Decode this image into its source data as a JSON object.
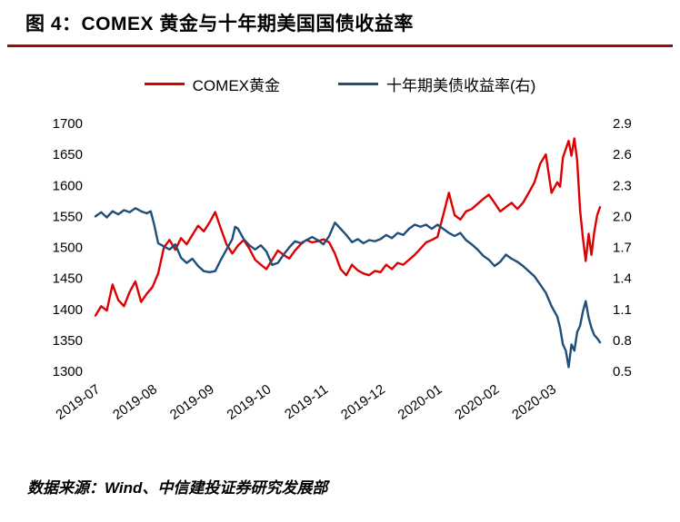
{
  "header": {
    "title": "图 4：COMEX 黄金与十年期美国国债收益率"
  },
  "footer": {
    "source": "数据来源：Wind、中信建投证券研究发展部"
  },
  "colors": {
    "accent_rule": "#9a0d0d",
    "gold_line": "#dd0000",
    "yield_line": "#1f4e79",
    "text": "#000000",
    "background": "#ffffff"
  },
  "chart_data": {
    "type": "line",
    "title": "图 4：COMEX 黄金与十年期美国国债收益率",
    "legend_position": "top",
    "grid": false,
    "x_axis": {
      "t_max": 8.85,
      "ticks": [
        {
          "t": 0,
          "label": "2019-07"
        },
        {
          "t": 1,
          "label": "2019-08"
        },
        {
          "t": 2,
          "label": "2019-09"
        },
        {
          "t": 3,
          "label": "2019-10"
        },
        {
          "t": 4,
          "label": "2019-11"
        },
        {
          "t": 5,
          "label": "2019-12"
        },
        {
          "t": 6,
          "label": "2020-01"
        },
        {
          "t": 7,
          "label": "2020-02"
        },
        {
          "t": 8,
          "label": "2020-03"
        }
      ]
    },
    "left_axis": {
      "min": 1300,
      "max": 1700,
      "ticks": [
        1700,
        1650,
        1600,
        1550,
        1500,
        1450,
        1400,
        1350,
        1300
      ]
    },
    "right_axis": {
      "min": 0.5,
      "max": 2.9,
      "ticks": [
        2.9,
        2.6,
        2.3,
        2.0,
        1.7,
        1.4,
        1.1,
        0.8,
        0.5
      ]
    },
    "series": [
      {
        "name": "COMEX黄金",
        "data_name": "comex-gold-line",
        "axis": "left",
        "color": "#dd0000",
        "points": [
          [
            0,
            1390
          ],
          [
            0.1,
            1405
          ],
          [
            0.2,
            1398
          ],
          [
            0.3,
            1440
          ],
          [
            0.4,
            1415
          ],
          [
            0.5,
            1405
          ],
          [
            0.6,
            1428
          ],
          [
            0.7,
            1445
          ],
          [
            0.8,
            1412
          ],
          [
            0.9,
            1425
          ],
          [
            1,
            1436
          ],
          [
            1.1,
            1458
          ],
          [
            1.2,
            1500
          ],
          [
            1.3,
            1512
          ],
          [
            1.4,
            1496
          ],
          [
            1.5,
            1515
          ],
          [
            1.6,
            1505
          ],
          [
            1.7,
            1520
          ],
          [
            1.8,
            1535
          ],
          [
            1.9,
            1526
          ],
          [
            2,
            1540
          ],
          [
            2.1,
            1557
          ],
          [
            2.2,
            1530
          ],
          [
            2.3,
            1505
          ],
          [
            2.4,
            1490
          ],
          [
            2.5,
            1503
          ],
          [
            2.6,
            1512
          ],
          [
            2.7,
            1498
          ],
          [
            2.8,
            1480
          ],
          [
            2.9,
            1472
          ],
          [
            3,
            1465
          ],
          [
            3.1,
            1480
          ],
          [
            3.2,
            1495
          ],
          [
            3.3,
            1488
          ],
          [
            3.4,
            1482
          ],
          [
            3.5,
            1495
          ],
          [
            3.6,
            1505
          ],
          [
            3.7,
            1512
          ],
          [
            3.8,
            1508
          ],
          [
            3.9,
            1510
          ],
          [
            4,
            1513
          ],
          [
            4.1,
            1508
          ],
          [
            4.2,
            1490
          ],
          [
            4.3,
            1465
          ],
          [
            4.4,
            1455
          ],
          [
            4.5,
            1472
          ],
          [
            4.6,
            1463
          ],
          [
            4.7,
            1458
          ],
          [
            4.8,
            1455
          ],
          [
            4.9,
            1462
          ],
          [
            5,
            1460
          ],
          [
            5.1,
            1472
          ],
          [
            5.2,
            1465
          ],
          [
            5.3,
            1475
          ],
          [
            5.4,
            1472
          ],
          [
            5.5,
            1480
          ],
          [
            5.6,
            1488
          ],
          [
            5.7,
            1498
          ],
          [
            5.8,
            1508
          ],
          [
            5.9,
            1512
          ],
          [
            6,
            1517
          ],
          [
            6.1,
            1552
          ],
          [
            6.2,
            1588
          ],
          [
            6.3,
            1552
          ],
          [
            6.4,
            1545
          ],
          [
            6.5,
            1558
          ],
          [
            6.6,
            1562
          ],
          [
            6.7,
            1570
          ],
          [
            6.8,
            1578
          ],
          [
            6.9,
            1585
          ],
          [
            7,
            1572
          ],
          [
            7.1,
            1558
          ],
          [
            7.2,
            1565
          ],
          [
            7.3,
            1572
          ],
          [
            7.4,
            1562
          ],
          [
            7.5,
            1572
          ],
          [
            7.6,
            1588
          ],
          [
            7.7,
            1605
          ],
          [
            7.8,
            1635
          ],
          [
            7.9,
            1650
          ],
          [
            8,
            1588
          ],
          [
            8.1,
            1605
          ],
          [
            8.15,
            1598
          ],
          [
            8.2,
            1645
          ],
          [
            8.3,
            1672
          ],
          [
            8.35,
            1648
          ],
          [
            8.4,
            1676
          ],
          [
            8.45,
            1640
          ],
          [
            8.5,
            1560
          ],
          [
            8.55,
            1515
          ],
          [
            8.6,
            1478
          ],
          [
            8.65,
            1522
          ],
          [
            8.7,
            1488
          ],
          [
            8.75,
            1525
          ],
          [
            8.8,
            1552
          ],
          [
            8.85,
            1565
          ]
        ]
      },
      {
        "name": "十年期美债收益率(右)",
        "data_name": "treasury-yield-line",
        "axis": "right",
        "color": "#1f4e79",
        "points": [
          [
            0,
            2.0
          ],
          [
            0.1,
            2.04
          ],
          [
            0.2,
            1.99
          ],
          [
            0.3,
            2.05
          ],
          [
            0.4,
            2.02
          ],
          [
            0.5,
            2.06
          ],
          [
            0.6,
            2.04
          ],
          [
            0.7,
            2.08
          ],
          [
            0.8,
            2.05
          ],
          [
            0.9,
            2.03
          ],
          [
            0.97,
            2.05
          ],
          [
            1.03,
            1.92
          ],
          [
            1.1,
            1.74
          ],
          [
            1.2,
            1.71
          ],
          [
            1.3,
            1.68
          ],
          [
            1.4,
            1.73
          ],
          [
            1.5,
            1.6
          ],
          [
            1.6,
            1.55
          ],
          [
            1.7,
            1.59
          ],
          [
            1.8,
            1.52
          ],
          [
            1.9,
            1.47
          ],
          [
            2,
            1.46
          ],
          [
            2.1,
            1.47
          ],
          [
            2.2,
            1.58
          ],
          [
            2.3,
            1.68
          ],
          [
            2.4,
            1.78
          ],
          [
            2.45,
            1.9
          ],
          [
            2.5,
            1.88
          ],
          [
            2.6,
            1.78
          ],
          [
            2.7,
            1.72
          ],
          [
            2.8,
            1.68
          ],
          [
            2.9,
            1.72
          ],
          [
            3,
            1.66
          ],
          [
            3.1,
            1.53
          ],
          [
            3.2,
            1.55
          ],
          [
            3.3,
            1.63
          ],
          [
            3.4,
            1.7
          ],
          [
            3.5,
            1.76
          ],
          [
            3.6,
            1.74
          ],
          [
            3.7,
            1.77
          ],
          [
            3.8,
            1.8
          ],
          [
            3.9,
            1.77
          ],
          [
            4,
            1.73
          ],
          [
            4.1,
            1.81
          ],
          [
            4.2,
            1.94
          ],
          [
            4.3,
            1.88
          ],
          [
            4.4,
            1.82
          ],
          [
            4.5,
            1.75
          ],
          [
            4.6,
            1.78
          ],
          [
            4.7,
            1.74
          ],
          [
            4.8,
            1.77
          ],
          [
            4.9,
            1.76
          ],
          [
            5,
            1.78
          ],
          [
            5.1,
            1.82
          ],
          [
            5.2,
            1.79
          ],
          [
            5.3,
            1.84
          ],
          [
            5.4,
            1.82
          ],
          [
            5.5,
            1.88
          ],
          [
            5.6,
            1.92
          ],
          [
            5.7,
            1.9
          ],
          [
            5.8,
            1.92
          ],
          [
            5.9,
            1.88
          ],
          [
            6,
            1.92
          ],
          [
            6.1,
            1.88
          ],
          [
            6.2,
            1.84
          ],
          [
            6.3,
            1.81
          ],
          [
            6.4,
            1.84
          ],
          [
            6.5,
            1.77
          ],
          [
            6.6,
            1.73
          ],
          [
            6.7,
            1.68
          ],
          [
            6.8,
            1.62
          ],
          [
            6.9,
            1.58
          ],
          [
            7,
            1.52
          ],
          [
            7.1,
            1.56
          ],
          [
            7.2,
            1.63
          ],
          [
            7.3,
            1.59
          ],
          [
            7.4,
            1.56
          ],
          [
            7.5,
            1.52
          ],
          [
            7.6,
            1.47
          ],
          [
            7.7,
            1.42
          ],
          [
            7.8,
            1.34
          ],
          [
            7.9,
            1.26
          ],
          [
            8,
            1.13
          ],
          [
            8.1,
            1.03
          ],
          [
            8.15,
            0.92
          ],
          [
            8.2,
            0.76
          ],
          [
            8.25,
            0.7
          ],
          [
            8.3,
            0.54
          ],
          [
            8.35,
            0.76
          ],
          [
            8.4,
            0.7
          ],
          [
            8.45,
            0.88
          ],
          [
            8.5,
            0.94
          ],
          [
            8.55,
            1.08
          ],
          [
            8.6,
            1.18
          ],
          [
            8.65,
            1.02
          ],
          [
            8.7,
            0.92
          ],
          [
            8.75,
            0.85
          ],
          [
            8.8,
            0.82
          ],
          [
            8.85,
            0.78
          ]
        ]
      }
    ]
  }
}
